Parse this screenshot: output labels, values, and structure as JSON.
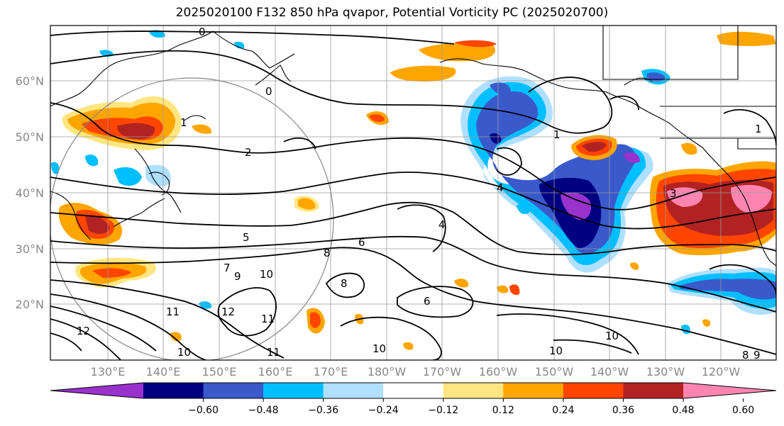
{
  "title": "2025020100 F132 850 hPa qvapor, Potential Vorticity PC (2025020700)",
  "lat_labels": [
    "60°N",
    "50°N",
    "40°N",
    "30°N",
    "20°N"
  ],
  "lon_labels": [
    "130°E",
    "140°E",
    "150°E",
    "160°E",
    "170°E",
    "180°W",
    "170°W",
    "160°W",
    "150°W",
    "140°W",
    "130°W",
    "120°W"
  ],
  "contour_labels": [
    "0",
    "0",
    "1",
    "1",
    "1",
    "2",
    "3",
    "4",
    "4",
    "5",
    "6",
    "6",
    "7",
    "8",
    "8",
    "9",
    "10",
    "10",
    "10",
    "11",
    "11",
    "11",
    "12",
    "12",
    "10",
    "10",
    "8",
    "9"
  ],
  "colorbar": {
    "ticks": [
      "−0.60",
      "−0.48",
      "−0.36",
      "−0.24",
      "−0.12",
      "0.12",
      "0.24",
      "0.36",
      "0.48",
      "0.60"
    ],
    "colors": [
      "#9932cc",
      "#000080",
      "#3a5acc",
      "#00bfff",
      "#b0e0ff",
      "#ffffff",
      "#ffe680",
      "#ffa500",
      "#ff4500",
      "#b22222",
      "#ff85b0"
    ]
  },
  "colors": {
    "purple": "#9932cc",
    "navy": "#000080",
    "royal": "#3a5acc",
    "sky": "#00bfff",
    "pale": "#b0e0ff",
    "yellow": "#ffe680",
    "orange": "#ffa500",
    "redorange": "#ff4500",
    "firebrick": "#b22222",
    "pink": "#ff85b0"
  }
}
